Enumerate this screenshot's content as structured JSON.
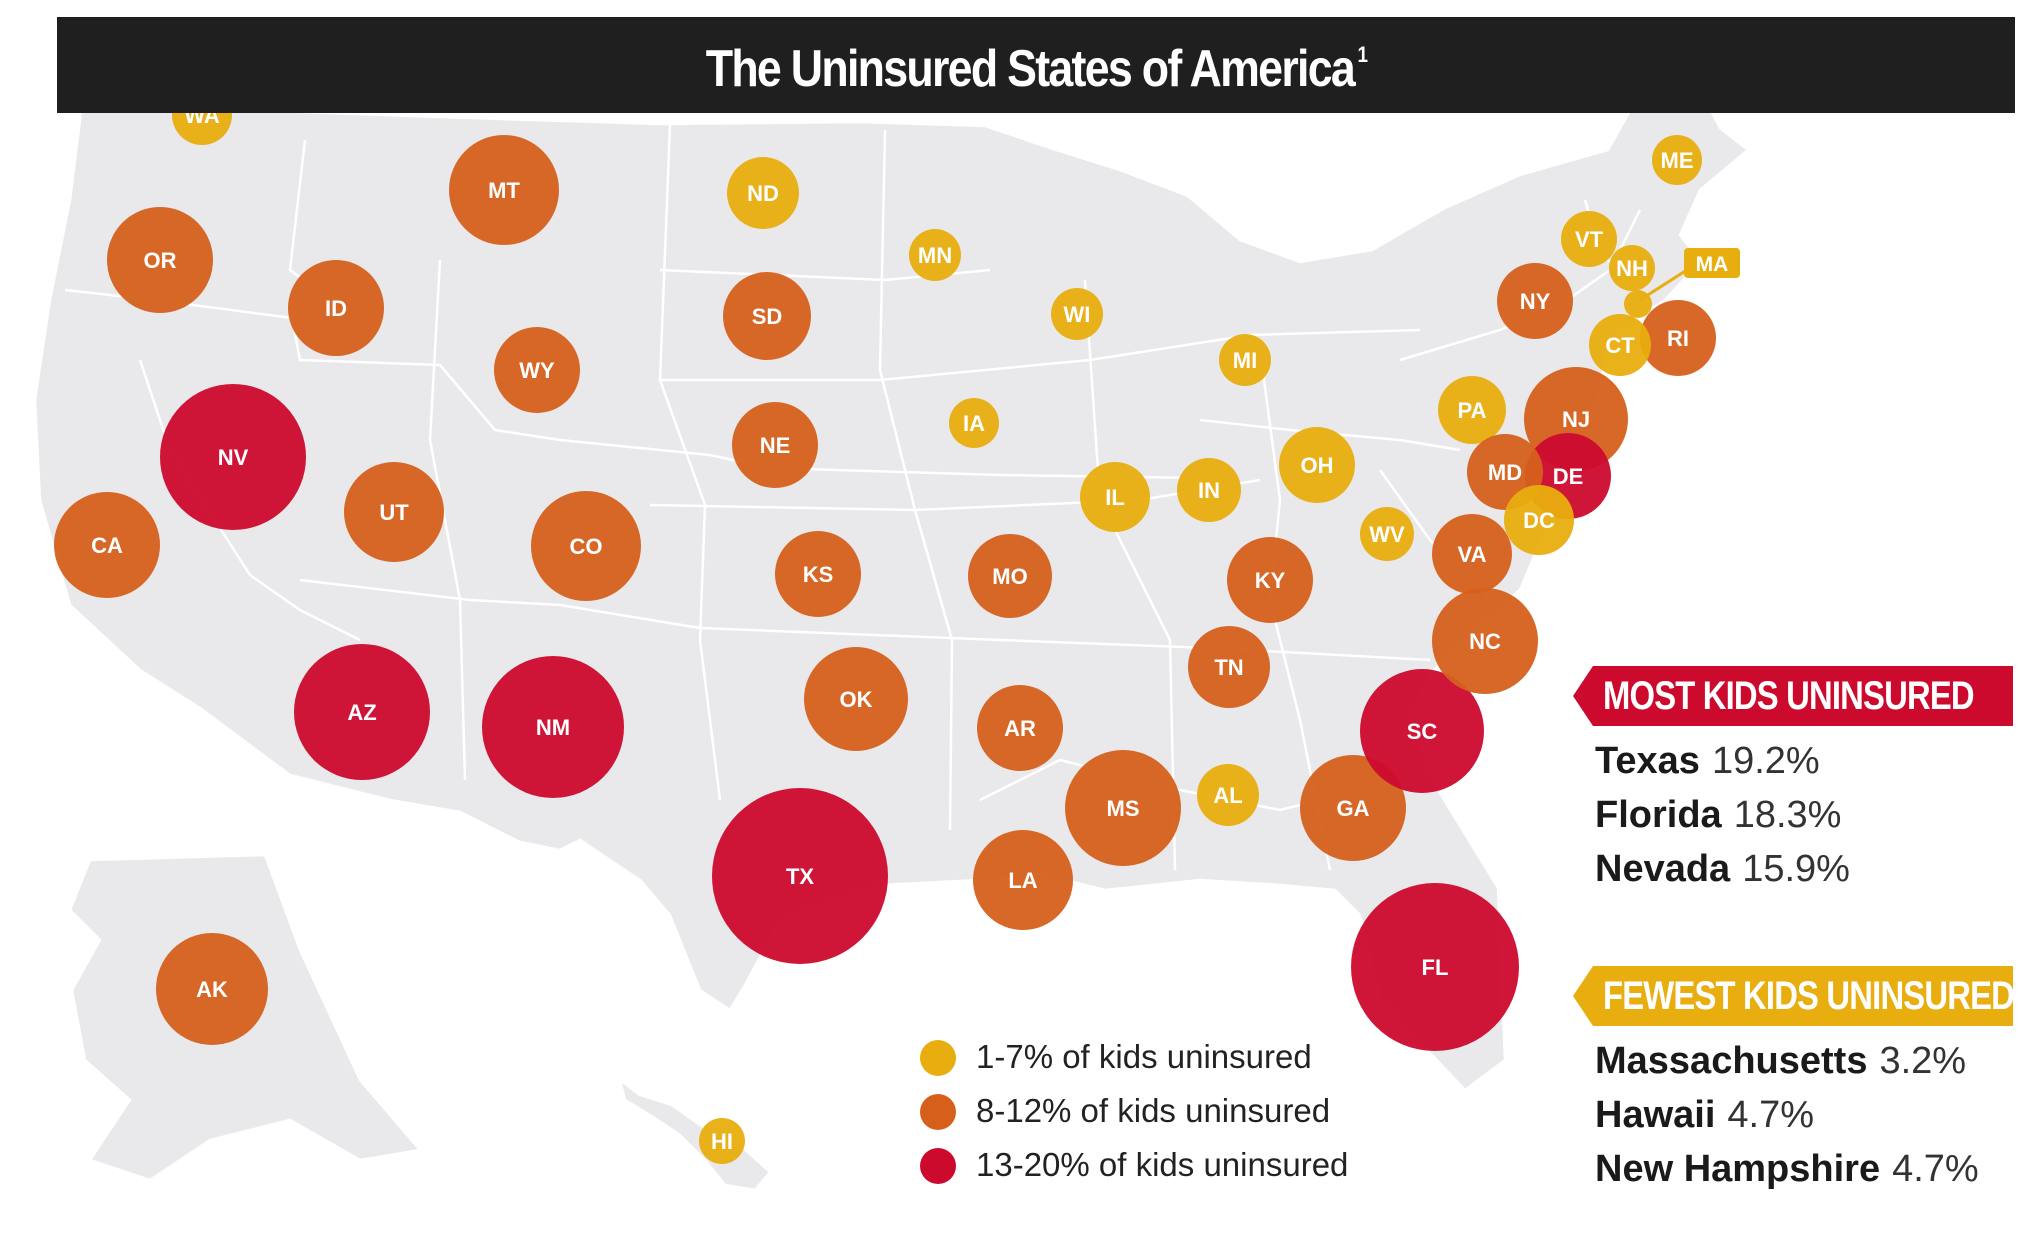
{
  "title": "The Uninsured States of America",
  "title_footnote": "1",
  "colors": {
    "low": "#e8ad0e",
    "mid": "#d6601b",
    "high": "#cc0a2e",
    "land": "#e9e9eb",
    "border": "#ffffff",
    "title_bar": "#1f1f1f",
    "most_header": "#cc0a2e",
    "fewest_header": "#e8ad0e"
  },
  "legend": [
    {
      "label": "1-7% of kids uninsured",
      "tier": "low"
    },
    {
      "label": "8-12% of kids uninsured",
      "tier": "mid"
    },
    {
      "label": "13-20% of kids uninsured",
      "tier": "high"
    }
  ],
  "states": [
    {
      "abbr": "WA",
      "tier": "low"
    },
    {
      "abbr": "OR",
      "tier": "mid"
    },
    {
      "abbr": "CA",
      "tier": "mid"
    },
    {
      "abbr": "NV",
      "tier": "high",
      "value": 15.9
    },
    {
      "abbr": "ID",
      "tier": "mid"
    },
    {
      "abbr": "MT",
      "tier": "mid"
    },
    {
      "abbr": "WY",
      "tier": "mid"
    },
    {
      "abbr": "UT",
      "tier": "mid"
    },
    {
      "abbr": "AZ",
      "tier": "high"
    },
    {
      "abbr": "CO",
      "tier": "mid"
    },
    {
      "abbr": "NM",
      "tier": "high"
    },
    {
      "abbr": "ND",
      "tier": "low"
    },
    {
      "abbr": "SD",
      "tier": "mid"
    },
    {
      "abbr": "NE",
      "tier": "mid"
    },
    {
      "abbr": "KS",
      "tier": "mid"
    },
    {
      "abbr": "OK",
      "tier": "mid"
    },
    {
      "abbr": "TX",
      "tier": "high",
      "value": 19.2
    },
    {
      "abbr": "MN",
      "tier": "low"
    },
    {
      "abbr": "IA",
      "tier": "low"
    },
    {
      "abbr": "MO",
      "tier": "mid"
    },
    {
      "abbr": "AR",
      "tier": "mid"
    },
    {
      "abbr": "LA",
      "tier": "mid"
    },
    {
      "abbr": "WI",
      "tier": "low"
    },
    {
      "abbr": "IL",
      "tier": "low"
    },
    {
      "abbr": "MI",
      "tier": "low"
    },
    {
      "abbr": "IN",
      "tier": "low"
    },
    {
      "abbr": "OH",
      "tier": "low"
    },
    {
      "abbr": "KY",
      "tier": "mid"
    },
    {
      "abbr": "TN",
      "tier": "mid"
    },
    {
      "abbr": "MS",
      "tier": "mid"
    },
    {
      "abbr": "AL",
      "tier": "low"
    },
    {
      "abbr": "GA",
      "tier": "mid"
    },
    {
      "abbr": "FL",
      "tier": "high",
      "value": 18.3
    },
    {
      "abbr": "SC",
      "tier": "high"
    },
    {
      "abbr": "NC",
      "tier": "mid"
    },
    {
      "abbr": "VA",
      "tier": "mid"
    },
    {
      "abbr": "WV",
      "tier": "low"
    },
    {
      "abbr": "PA",
      "tier": "low"
    },
    {
      "abbr": "NY",
      "tier": "mid"
    },
    {
      "abbr": "VT",
      "tier": "low"
    },
    {
      "abbr": "NH",
      "tier": "low",
      "value": 4.7
    },
    {
      "abbr": "ME",
      "tier": "low"
    },
    {
      "abbr": "MA",
      "tier": "low",
      "value": 3.2
    },
    {
      "abbr": "RI",
      "tier": "mid"
    },
    {
      "abbr": "CT",
      "tier": "low"
    },
    {
      "abbr": "NJ",
      "tier": "mid"
    },
    {
      "abbr": "DE",
      "tier": "high"
    },
    {
      "abbr": "MD",
      "tier": "mid"
    },
    {
      "abbr": "DC",
      "tier": "low"
    },
    {
      "abbr": "AK",
      "tier": "mid"
    },
    {
      "abbr": "HI",
      "tier": "low",
      "value": 4.7
    }
  ],
  "most": {
    "header": "MOST KIDS UNINSURED",
    "items": [
      {
        "state": "Texas",
        "pct": "19.2%"
      },
      {
        "state": "Florida",
        "pct": "18.3%"
      },
      {
        "state": "Nevada",
        "pct": "15.9%"
      }
    ]
  },
  "fewest": {
    "header": "FEWEST KIDS UNINSURED",
    "items": [
      {
        "state": "Massachusetts",
        "pct": "3.2%"
      },
      {
        "state": "Hawaii",
        "pct": "4.7%"
      },
      {
        "state": "New Hampshire",
        "pct": "4.7%"
      }
    ]
  }
}
